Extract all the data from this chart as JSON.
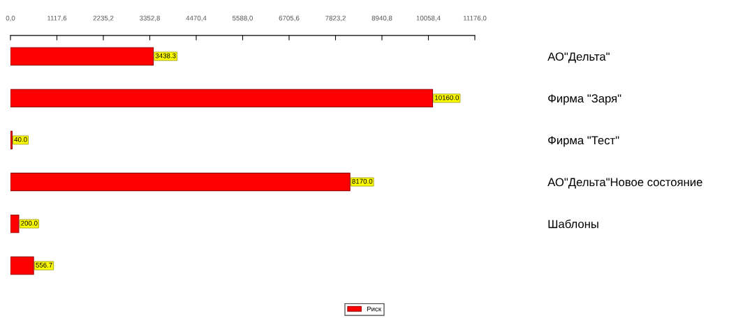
{
  "chart_data": {
    "type": "bar",
    "orientation": "horizontal",
    "categories": [
      "АО\"Дельта\"",
      "Фирма \"Заря\"",
      "Фирма \"Тест\"",
      "АО\"Дельта\"Новое состояние",
      "Шаблоны",
      null
    ],
    "series": [
      {
        "name": "Риск",
        "color": "#ff0000",
        "values": [
          3438.3,
          10160.0,
          40.0,
          8170.0,
          200.0,
          556.7
        ],
        "value_labels": [
          "3438.3",
          "10160.0",
          "40.0",
          "8170.0",
          "200.0",
          "556.7"
        ]
      }
    ],
    "xlim": [
      0,
      11176.0
    ],
    "xticks": [
      {
        "value": 0,
        "label": "0,0"
      },
      {
        "value": 1117.6,
        "label": "1117,6"
      },
      {
        "value": 2235.2,
        "label": "2235,2"
      },
      {
        "value": 3352.8,
        "label": "3352,8"
      },
      {
        "value": 4470.4,
        "label": "4470,4"
      },
      {
        "value": 5588.0,
        "label": "5588,0"
      },
      {
        "value": 6705.6,
        "label": "6705,6"
      },
      {
        "value": 7823.2,
        "label": "7823,2"
      },
      {
        "value": 8940.8,
        "label": "8940,8"
      },
      {
        "value": 10058.4,
        "label": "10058,4"
      },
      {
        "value": 11176.0,
        "label": "11176,0"
      }
    ],
    "legend": "bottom",
    "grid": false
  }
}
